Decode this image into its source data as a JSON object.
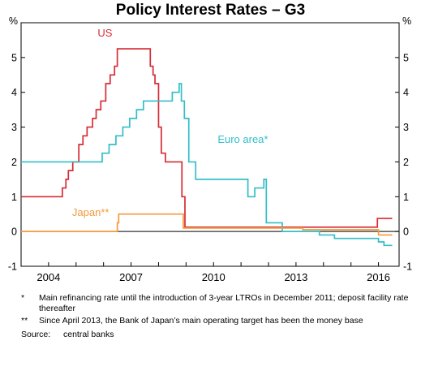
{
  "chart_data": {
    "type": "line",
    "title": "Policy Interest Rates – G3",
    "left_unit": "%",
    "right_unit": "%",
    "xlim": [
      2003.0,
      2016.75
    ],
    "ylim": [
      -1,
      6
    ],
    "y_ticks": [
      -1,
      0,
      1,
      2,
      3,
      4,
      5
    ],
    "x_ticks": [
      2004,
      2007,
      2010,
      2013,
      2016
    ],
    "grid": false,
    "zero_line": true,
    "series": [
      {
        "name": "US",
        "color": "#d62b34",
        "label_position": "top",
        "step": true,
        "x": [
          2003.0,
          2004.5,
          2004.63,
          2004.72,
          2004.88,
          2005.1,
          2005.25,
          2005.4,
          2005.6,
          2005.73,
          2005.9,
          2006.08,
          2006.24,
          2006.4,
          2006.5,
          2007.7,
          2007.8,
          2007.87,
          2008.0,
          2008.1,
          2008.25,
          2008.35,
          2008.85,
          2008.96,
          2015.96,
          2016.5
        ],
        "y": [
          1.0,
          1.25,
          1.5,
          1.75,
          2.0,
          2.5,
          2.75,
          3.0,
          3.25,
          3.5,
          3.75,
          4.25,
          4.5,
          4.75,
          5.25,
          4.75,
          4.5,
          4.25,
          3.0,
          2.25,
          2.0,
          2.0,
          1.0,
          0.125,
          0.375,
          0.375
        ]
      },
      {
        "name": "Euro area*",
        "color": "#33bec8",
        "label_position": "right",
        "step": true,
        "x": [
          2003.0,
          2005.95,
          2006.2,
          2006.45,
          2006.7,
          2006.95,
          2007.2,
          2007.45,
          2008.5,
          2008.75,
          2008.83,
          2008.94,
          2009.1,
          2009.35,
          2011.25,
          2011.5,
          2011.83,
          2011.92,
          2012.5,
          2013.4,
          2013.85,
          2014.4,
          2014.7,
          2016.0,
          2016.2,
          2016.5
        ],
        "y": [
          2.0,
          2.25,
          2.5,
          2.75,
          3.0,
          3.25,
          3.5,
          3.75,
          4.0,
          4.25,
          3.75,
          3.25,
          2.0,
          1.5,
          1.0,
          1.25,
          1.5,
          0.25,
          0.0,
          0.0,
          -0.1,
          -0.2,
          -0.2,
          -0.3,
          -0.4,
          -0.4
        ]
      },
      {
        "name": "Japan**",
        "color": "#f39a3c",
        "label_position": "left",
        "step": true,
        "x": [
          2003.0,
          2006.5,
          2006.55,
          2007.1,
          2008.9,
          2009.6,
          2013.25,
          2016.0,
          2016.5
        ],
        "y": [
          0.0,
          0.25,
          0.5,
          0.5,
          0.1,
          0.1,
          0.05,
          -0.1,
          -0.1
        ]
      }
    ],
    "notes": [
      {
        "mark": "*",
        "text": "Main refinancing rate until the introduction of 3-year LTROs in December 2011; deposit facility rate thereafter"
      },
      {
        "mark": "**",
        "text": "Since April 2013, the Bank of Japan’s main operating target has been the money base"
      }
    ],
    "source": {
      "label": "Source:",
      "text": "central banks"
    }
  }
}
